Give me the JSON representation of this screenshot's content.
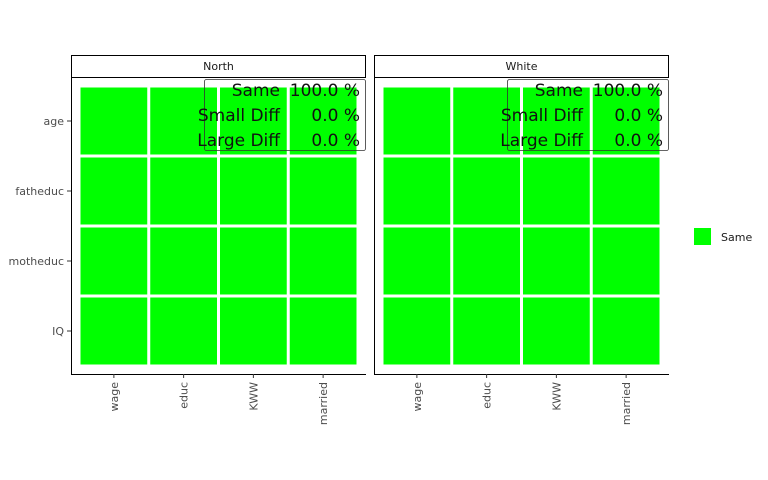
{
  "chart_data": {
    "type": "heatmap",
    "colors": {
      "Same": "#00FF00",
      "Small Diff": "#FFA500",
      "Large Diff": "#FF0000"
    },
    "x_categories": [
      "wage",
      "educ",
      "KWW",
      "married"
    ],
    "y_categories": [
      "age",
      "fatheduc",
      "motheduc",
      "IQ"
    ],
    "legend": {
      "position": "right",
      "entries": [
        "Same"
      ]
    },
    "facets": [
      {
        "label": "North",
        "cells": [
          [
            "Same",
            "Same",
            "Same",
            "Same"
          ],
          [
            "Same",
            "Same",
            "Same",
            "Same"
          ],
          [
            "Same",
            "Same",
            "Same",
            "Same"
          ],
          [
            "Same",
            "Same",
            "Same",
            "Same"
          ]
        ],
        "summary": [
          {
            "label": "Same",
            "value": "100.0 %"
          },
          {
            "label": "Small Diff",
            "value": "0.0 %"
          },
          {
            "label": "Large Diff",
            "value": "0.0 %"
          }
        ]
      },
      {
        "label": "White",
        "cells": [
          [
            "Same",
            "Same",
            "Same",
            "Same"
          ],
          [
            "Same",
            "Same",
            "Same",
            "Same"
          ],
          [
            "Same",
            "Same",
            "Same",
            "Same"
          ],
          [
            "Same",
            "Same",
            "Same",
            "Same"
          ]
        ],
        "summary": [
          {
            "label": "Same",
            "value": "100.0 %"
          },
          {
            "label": "Small Diff",
            "value": "0.0 %"
          },
          {
            "label": "Large Diff",
            "value": "0.0 %"
          }
        ]
      }
    ]
  }
}
